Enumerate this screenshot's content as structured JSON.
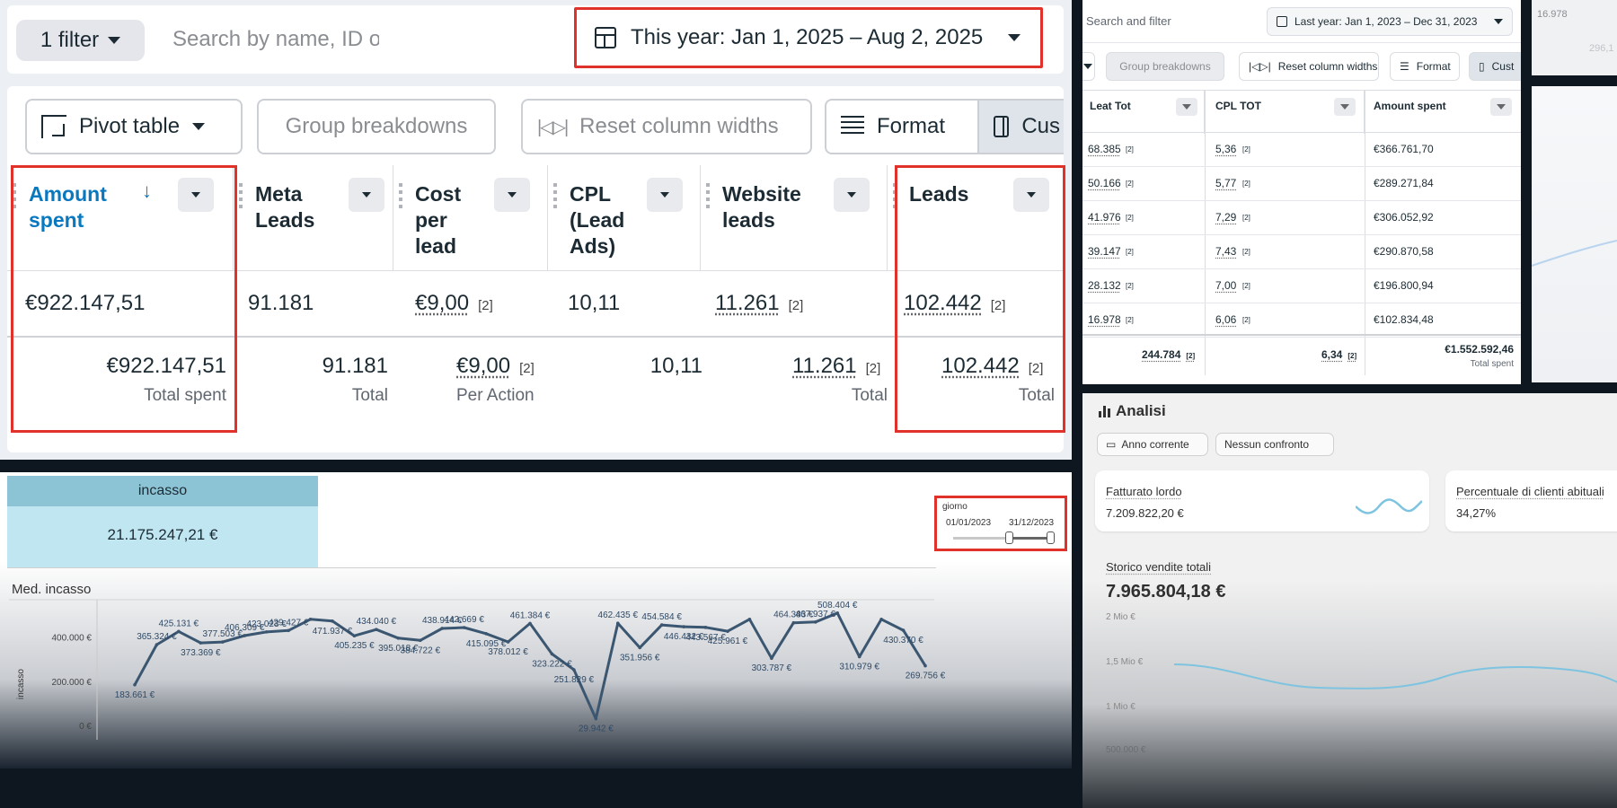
{
  "meta_ads": {
    "filter_label": "1 filter",
    "search_placeholder": "Search by name, ID o",
    "date_range": "This year: Jan 1, 2025 – Aug 2, 2025",
    "toolbar": {
      "pivot": "Pivot table",
      "group": "Group breakdowns",
      "reset": "Reset column widths",
      "format": "Format",
      "customize": "Cus"
    },
    "columns": [
      {
        "title": "Amount spent",
        "value": "€922.147,51",
        "total": "€922.147,51",
        "total_label": "Total spent"
      },
      {
        "title": "Meta Leads",
        "value": "91.181",
        "total": "91.181",
        "total_label": "Total"
      },
      {
        "title": "Cost per lead",
        "value": "€9,00",
        "tag": "[2]",
        "total": "€9,00",
        "total_tag": "[2]",
        "total_label": "Per Action"
      },
      {
        "title": "CPL (Lead Ads)",
        "value": "10,11",
        "total": "10,11",
        "total_label": ""
      },
      {
        "title": "Website leads",
        "value": "11.261",
        "tag": "[2]",
        "total": "11.261",
        "total_tag": "[2]",
        "total_label": "Total"
      },
      {
        "title": "Leads",
        "value": "102.442",
        "tag": "[2]",
        "total": "102.442",
        "total_tag": "[2]",
        "total_label": "Total"
      }
    ]
  },
  "meta_ads_2": {
    "search_placeholder": "Search and filter",
    "date_range": "Last year: Jan 1, 2023 – Dec 31, 2023",
    "toolbar": {
      "group": "Group breakdowns",
      "reset": "Reset column widths",
      "format": "Format",
      "customize": "Cust"
    },
    "columns": [
      "Leat Tot",
      "CPL TOT",
      "Amount spent"
    ],
    "tag": "[2]",
    "rows": [
      {
        "leads": "68.385",
        "cpl": "5,36",
        "spent": "€366.761,70"
      },
      {
        "leads": "50.166",
        "cpl": "5,77",
        "spent": "€289.271,84"
      },
      {
        "leads": "41.976",
        "cpl": "7,29",
        "spent": "€306.052,92"
      },
      {
        "leads": "39.147",
        "cpl": "7,43",
        "spent": "€290.870,58"
      },
      {
        "leads": "28.132",
        "cpl": "7,00",
        "spent": "€196.800,94"
      },
      {
        "leads": "16.978",
        "cpl": "6,06",
        "spent": "€102.834,48"
      }
    ],
    "totals": {
      "leads": "244.784",
      "cpl": "6,34",
      "spent": "€1.552.592,46",
      "spent_label": "Total spent"
    }
  },
  "corner": {
    "text1": "16.978",
    "text2": "296,1"
  },
  "powerbi": {
    "kpi_label": "incasso",
    "kpi_value": "21.175.247,21 €",
    "slicer_title": "giorno",
    "slicer_from": "01/01/2023",
    "slicer_to": "31/12/2023",
    "chart_title": "Med. incasso"
  },
  "chart_data": {
    "type": "line",
    "title": "Med. incasso",
    "ylabel": "incasso",
    "ylim": [
      0,
      520000
    ],
    "yticks": [
      "0 €",
      "200.000 €",
      "400.000 €"
    ],
    "ytick_values": [
      0,
      200000,
      400000
    ],
    "color": "#3b5670",
    "values": [
      183661,
      365324,
      425131,
      373369,
      377503,
      406309,
      423023,
      429427,
      480000,
      471937,
      405235,
      434040,
      395018,
      384722,
      438914,
      442669,
      415095,
      378012,
      461384,
      323222,
      251829,
      29942,
      462435,
      351956,
      454584,
      446432,
      443567,
      425961,
      480000,
      303787,
      464383,
      467937,
      508404,
      310979,
      480000,
      430370,
      269756
    ],
    "labels": [
      "183.661 €",
      "365.324 €",
      "425.131 €",
      "373.369 €",
      "377.503 €",
      "406.309 €",
      "423.023 €",
      "429.427 €",
      "",
      "471.937 €",
      "405.235 €",
      "434.040 €",
      "395.018 €",
      "384.722 €",
      "438.914 €",
      "442.669 €",
      "415.095 €",
      "378.012 €",
      "461.384 €",
      "323.222 €",
      "251.829 €",
      "29.942 €",
      "462.435 €",
      "351.956 €",
      "454.584 €",
      "446.432 €",
      "443.567 €",
      "425.961 €",
      "",
      "303.787 €",
      "464.383 €",
      "467.937 €",
      "508.404 €",
      "310.979 €",
      "",
      "430.370 €",
      "269.756 €"
    ]
  },
  "shopify": {
    "title": "Analisi",
    "pill1": "Anno corrente",
    "pill2": "Nessun confronto",
    "card1_label": "Fatturato lordo",
    "card1_value": "7.209.822,20 €",
    "card2_label": "Percentuale di clienti abituali",
    "card2_value": "34,27%",
    "big_label": "Storico vendite totali",
    "big_value": "7.965.804,18 €",
    "yticks": [
      "2 Mio €",
      "1,5 Mio €",
      "1 Mio €",
      "500.000 €"
    ]
  },
  "colors": {
    "highlight": "#e0322a",
    "meta_blue": "#0a78be",
    "kpi_header": "#8cc4d6",
    "kpi_body": "#bfe6f1",
    "line": "#3b5670"
  }
}
